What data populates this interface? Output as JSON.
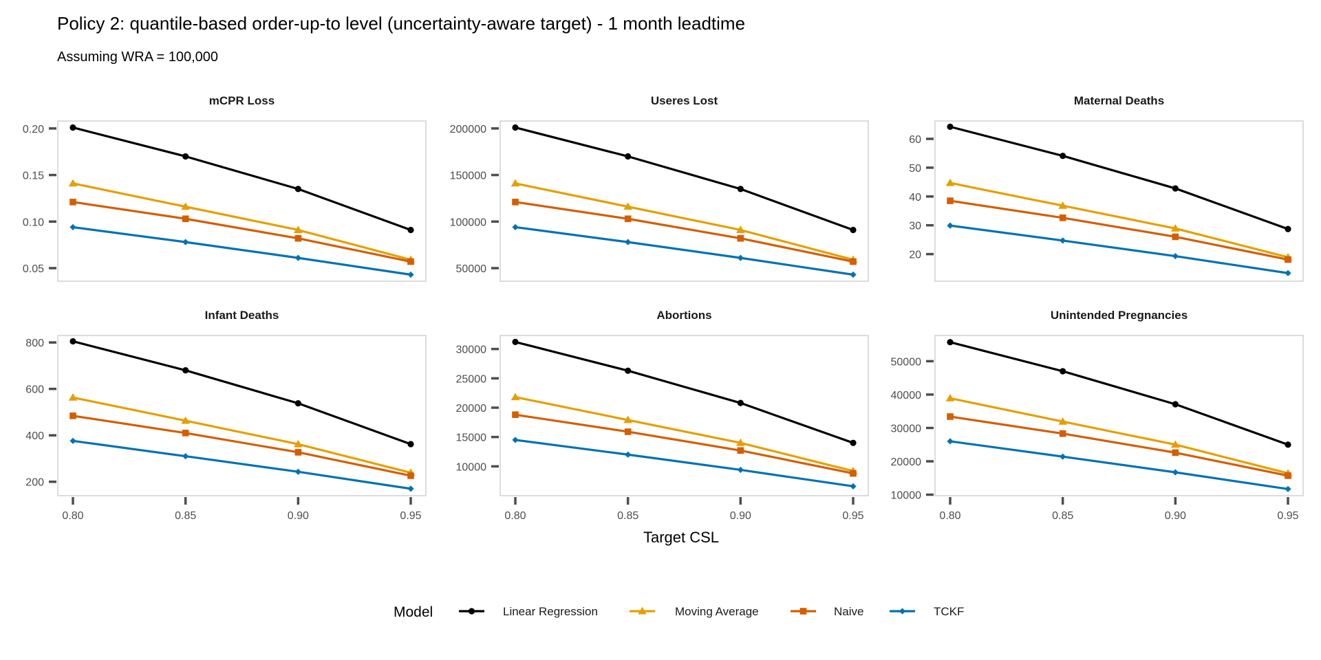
{
  "title": "Policy 2: quantile-based order-up-to level (uncertainty-aware target) - 1 month leadtime",
  "subtitle": "Assuming WRA = 100,000",
  "xlabel": "Target CSL",
  "legend": {
    "title": "Model"
  },
  "colors": {
    "Linear Regression": "#000000",
    "Moving Average": "#E69F00",
    "Naive": "#D55E00",
    "TCKF": "#0072B2"
  },
  "chart_data": {
    "type": "line",
    "x": [
      0.8,
      0.85,
      0.9,
      0.95
    ],
    "x_ticks": [
      "0.80",
      "0.85",
      "0.90",
      "0.95"
    ],
    "legend_position": "bottom",
    "panels": [
      {
        "title": "mCPR Loss",
        "ylim": [
          0.036,
          0.208
        ],
        "y_ticks": [
          0.05,
          0.1,
          0.15,
          0.2
        ],
        "y_tick_labels": [
          "0.05",
          "0.10",
          "0.15",
          "0.20"
        ],
        "series": [
          {
            "name": "Linear Regression",
            "marker": "circle",
            "values": [
              0.201,
              0.17,
              0.135,
              0.091
            ]
          },
          {
            "name": "Moving Average",
            "marker": "triangle",
            "values": [
              0.141,
              0.116,
              0.091,
              0.059
            ]
          },
          {
            "name": "Naive",
            "marker": "square",
            "values": [
              0.121,
              0.103,
              0.082,
              0.057
            ]
          },
          {
            "name": "TCKF",
            "marker": "diamond",
            "values": [
              0.094,
              0.078,
              0.061,
              0.043
            ]
          }
        ]
      },
      {
        "title": "Useres Lost",
        "ylim": [
          36000,
          208000
        ],
        "y_ticks": [
          50000,
          100000,
          150000,
          200000
        ],
        "y_tick_labels": [
          "50000",
          "100000",
          "150000",
          "200000"
        ],
        "series": [
          {
            "name": "Linear Regression",
            "marker": "circle",
            "values": [
              201000,
              170000,
              135000,
              91000
            ]
          },
          {
            "name": "Moving Average",
            "marker": "triangle",
            "values": [
              141000,
              116000,
              91000,
              59000
            ]
          },
          {
            "name": "Naive",
            "marker": "square",
            "values": [
              121000,
              103000,
              82000,
              57000
            ]
          },
          {
            "name": "TCKF",
            "marker": "diamond",
            "values": [
              94000,
              78000,
              61000,
              43000
            ]
          }
        ]
      },
      {
        "title": "Maternal Deaths",
        "ylim": [
          10.6,
          66.2
        ],
        "y_ticks": [
          20,
          30,
          40,
          50,
          60
        ],
        "y_tick_labels": [
          "20",
          "30",
          "40",
          "50",
          "60"
        ],
        "series": [
          {
            "name": "Linear Regression",
            "marker": "circle",
            "values": [
              64.2,
              54.1,
              42.8,
              28.7
            ]
          },
          {
            "name": "Moving Average",
            "marker": "triangle",
            "values": [
              44.7,
              36.8,
              28.9,
              18.9
            ]
          },
          {
            "name": "Naive",
            "marker": "square",
            "values": [
              38.5,
              32.6,
              26.0,
              18.1
            ]
          },
          {
            "name": "TCKF",
            "marker": "diamond",
            "values": [
              29.9,
              24.7,
              19.3,
              13.4
            ]
          }
        ]
      },
      {
        "title": "Infant Deaths",
        "ylim": [
          140,
          830
        ],
        "y_ticks": [
          200,
          400,
          600,
          800
        ],
        "y_tick_labels": [
          "200",
          "400",
          "600",
          "800"
        ],
        "series": [
          {
            "name": "Linear Regression",
            "marker": "circle",
            "values": [
              805,
              680,
              538,
              362
            ]
          },
          {
            "name": "Moving Average",
            "marker": "triangle",
            "values": [
              563,
              463,
              362,
              239
            ]
          },
          {
            "name": "Naive",
            "marker": "square",
            "values": [
              484,
              410,
              327,
              226
            ]
          },
          {
            "name": "TCKF",
            "marker": "diamond",
            "values": [
              376,
              310,
              243,
              170
            ]
          }
        ]
      },
      {
        "title": "Abortions",
        "ylim": [
          5000,
          32300
        ],
        "y_ticks": [
          10000,
          15000,
          20000,
          25000,
          30000
        ],
        "y_tick_labels": [
          "10000",
          "15000",
          "20000",
          "25000",
          "30000"
        ],
        "series": [
          {
            "name": "Linear Regression",
            "marker": "circle",
            "values": [
              31200,
              26300,
              20800,
              14000
            ]
          },
          {
            "name": "Moving Average",
            "marker": "triangle",
            "values": [
              21800,
              17900,
              14000,
              9200
            ]
          },
          {
            "name": "Naive",
            "marker": "square",
            "values": [
              18800,
              15900,
              12700,
              8800
            ]
          },
          {
            "name": "TCKF",
            "marker": "diamond",
            "values": [
              14500,
              12000,
              9400,
              6600
            ]
          }
        ]
      },
      {
        "title": "Unintended Pregnancies",
        "ylim": [
          9700,
          57700
        ],
        "y_ticks": [
          10000,
          20000,
          30000,
          40000,
          50000
        ],
        "y_tick_labels": [
          "10000",
          "20000",
          "30000",
          "40000",
          "50000"
        ],
        "series": [
          {
            "name": "Linear Regression",
            "marker": "circle",
            "values": [
              55700,
              47000,
              37100,
              25000
            ]
          },
          {
            "name": "Moving Average",
            "marker": "triangle",
            "values": [
              38900,
              31900,
              25000,
              16400
            ]
          },
          {
            "name": "Naive",
            "marker": "square",
            "values": [
              33400,
              28300,
              22600,
              15700
            ]
          },
          {
            "name": "TCKF",
            "marker": "diamond",
            "values": [
              26000,
              21400,
              16700,
              11700
            ]
          }
        ]
      }
    ]
  }
}
